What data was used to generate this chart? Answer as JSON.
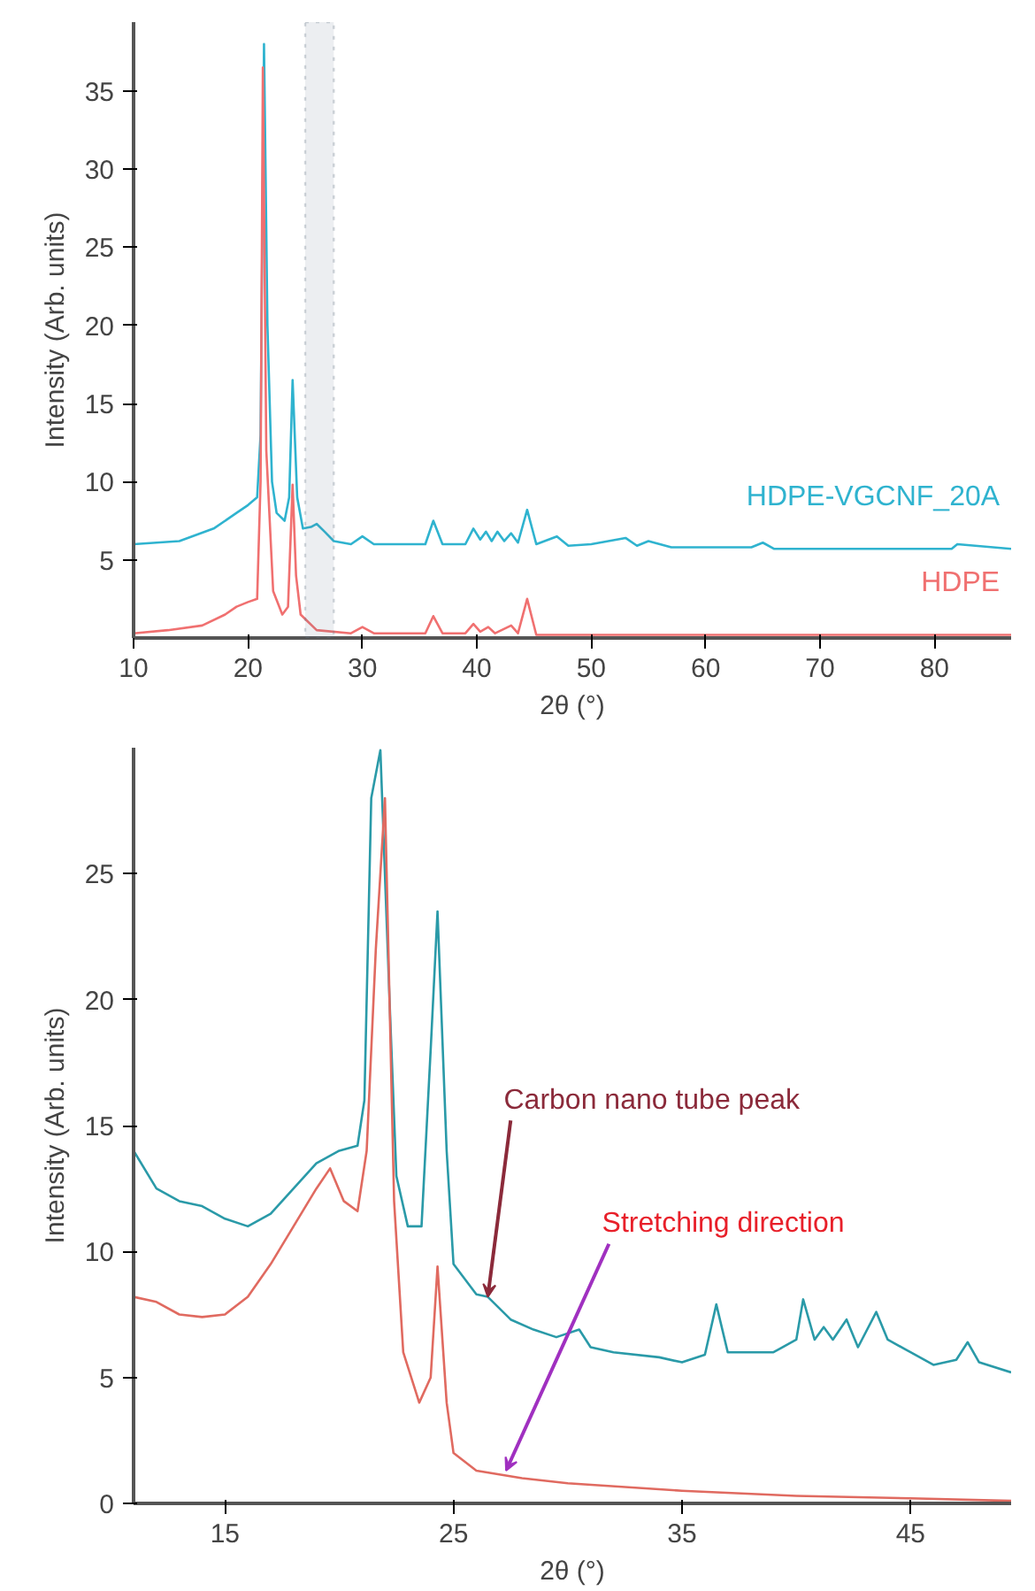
{
  "chart_data": [
    {
      "type": "line",
      "xlabel": "2θ (°)",
      "ylabel": "Intensity (Arb. units)",
      "xlim": [
        10,
        86.7
      ],
      "ylim": [
        0,
        39.4
      ],
      "xticks": [
        10,
        20,
        30,
        40,
        50,
        60,
        70,
        80
      ],
      "yticks": [
        5,
        10,
        15,
        20,
        25,
        30,
        35
      ],
      "grid": false,
      "bands": [
        {
          "axis": "x",
          "from": 25,
          "to": 27.5,
          "label": null
        }
      ],
      "series": [
        {
          "name": "HDPE-VGCNF_20A",
          "color": "#2fb3cf",
          "x": [
            10,
            14,
            17,
            19,
            20,
            20.8,
            21.1,
            21.4,
            21.7,
            22.1,
            22.5,
            23.2,
            23.6,
            23.9,
            24.3,
            24.8,
            25.5,
            26,
            26.7,
            27.5,
            29,
            30,
            31,
            35.5,
            36.2,
            37,
            39,
            39.7,
            40.3,
            40.8,
            41.3,
            41.8,
            42.4,
            43,
            43.6,
            44.4,
            45.2,
            47,
            48,
            50,
            53,
            54,
            55,
            57,
            64,
            65,
            66,
            81.5,
            82,
            86.7
          ],
          "values": [
            6,
            6.2,
            7,
            8,
            8.5,
            9,
            13,
            38,
            20,
            10,
            8,
            7.5,
            9,
            16.5,
            9,
            7,
            7.1,
            7.3,
            6.8,
            6.2,
            6,
            6.5,
            6,
            6,
            7.5,
            6,
            6,
            7,
            6.3,
            6.8,
            6.2,
            6.8,
            6.2,
            6.7,
            6.1,
            8.2,
            6,
            6.5,
            5.9,
            6,
            6.4,
            5.9,
            6.2,
            5.8,
            5.8,
            6.1,
            5.7,
            5.7,
            6,
            5.7
          ]
        },
        {
          "name": "HDPE",
          "color": "#f07070",
          "x": [
            10,
            13,
            16,
            18,
            19,
            20,
            20.8,
            21.1,
            21.3,
            21.6,
            22.2,
            23,
            23.5,
            23.9,
            24.2,
            24.6,
            26,
            29,
            30,
            31,
            35.5,
            36.2,
            37,
            39,
            39.7,
            40.3,
            41,
            41.6,
            43,
            43.6,
            44.4,
            45.2,
            60,
            86.7
          ],
          "values": [
            0.3,
            0.5,
            0.8,
            1.5,
            2,
            2.3,
            2.5,
            10,
            36.5,
            12,
            3,
            1.5,
            2,
            9.8,
            4,
            1.5,
            0.5,
            0.3,
            0.7,
            0.3,
            0.3,
            1.4,
            0.3,
            0.3,
            0.9,
            0.4,
            0.7,
            0.3,
            0.8,
            0.3,
            2.5,
            0.2,
            0.2,
            0.2
          ]
        }
      ]
    },
    {
      "type": "line",
      "xlabel": "2θ (°)",
      "ylabel": "Intensity (Arb. units)",
      "xlim": [
        11,
        49.4
      ],
      "ylim": [
        0,
        30
      ],
      "xticks": [
        15,
        25,
        35,
        45
      ],
      "yticks": [
        0,
        5,
        10,
        15,
        20,
        25
      ],
      "grid": false,
      "annotations": [
        {
          "text": "Carbon nano tube peak",
          "x": 26.5,
          "y": 8.2
        },
        {
          "text": "Stretching direction",
          "x": 27.3,
          "y": 1.3
        }
      ],
      "series": [
        {
          "color": "#2a9aa8",
          "x": [
            11,
            12,
            13,
            14,
            15,
            16,
            17,
            18,
            19,
            20,
            20.8,
            21.1,
            21.4,
            21.8,
            22.2,
            22.5,
            23,
            23.6,
            24,
            24.3,
            24.7,
            25,
            26,
            26.5,
            27.5,
            28.5,
            29.5,
            30.5,
            31,
            32,
            34,
            35,
            36,
            36.5,
            37,
            39,
            40,
            40.3,
            40.8,
            41.2,
            41.6,
            42.2,
            42.7,
            43.5,
            44,
            45,
            46,
            47,
            47.5,
            48,
            49.4
          ],
          "values": [
            14,
            12.5,
            12,
            11.8,
            11.3,
            11,
            11.5,
            12.5,
            13.5,
            14,
            14.2,
            16,
            28,
            29.9,
            20,
            13,
            11,
            11,
            18,
            23.5,
            14,
            9.5,
            8.3,
            8.2,
            7.3,
            6.9,
            6.6,
            6.9,
            6.2,
            6,
            5.8,
            5.6,
            5.9,
            7.9,
            6,
            6,
            6.5,
            8.1,
            6.5,
            7,
            6.5,
            7.3,
            6.2,
            7.6,
            6.5,
            6,
            5.5,
            5.7,
            6.4,
            5.6,
            5.2
          ]
        },
        {
          "color": "#e06a60",
          "x": [
            11,
            12,
            13,
            14,
            15,
            16,
            17,
            18,
            19,
            19.6,
            20.2,
            20.8,
            21.2,
            21.6,
            22,
            22.4,
            22.8,
            23.5,
            24,
            24.3,
            24.7,
            25,
            26,
            28,
            30,
            35,
            40,
            45,
            49.4
          ],
          "values": [
            8.2,
            8,
            7.5,
            7.4,
            7.5,
            8.2,
            9.5,
            11,
            12.5,
            13.3,
            12,
            11.6,
            14,
            22,
            28,
            12,
            6,
            4,
            5,
            9.4,
            4,
            2,
            1.3,
            1,
            0.8,
            0.5,
            0.3,
            0.2,
            0.1
          ]
        }
      ]
    }
  ]
}
